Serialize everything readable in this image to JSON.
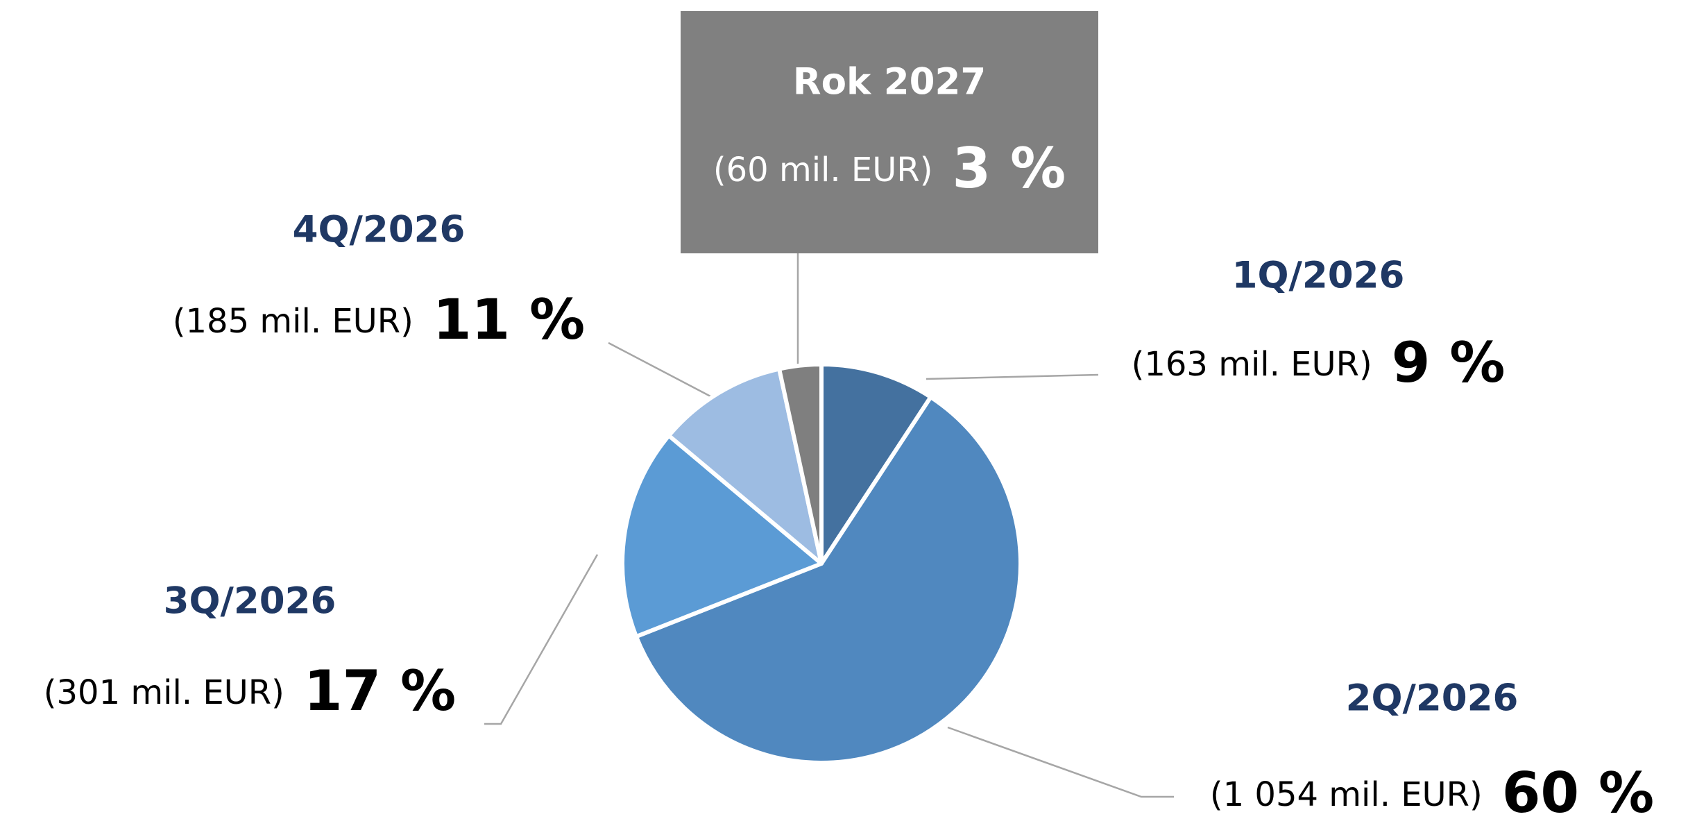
{
  "chart_data": {
    "type": "pie",
    "categories": [
      "1Q/2026",
      "2Q/2026",
      "3Q/2026",
      "4Q/2026",
      "Rok 2027"
    ],
    "values": [
      163,
      1054,
      301,
      185,
      60
    ],
    "value_labels": [
      "(163 mil. EUR)",
      "(1 054 mil. EUR)",
      "(301 mil. EUR)",
      "(185 mil. EUR)",
      "(60 mil. EUR)"
    ],
    "share_labels": [
      "9 %",
      "60 %",
      "17 %",
      "11 %",
      "3 %"
    ],
    "colors": [
      "#44719f",
      "#5088bf",
      "#5b9bd5",
      "#9dbce2",
      "#7f7f7f"
    ]
  }
}
